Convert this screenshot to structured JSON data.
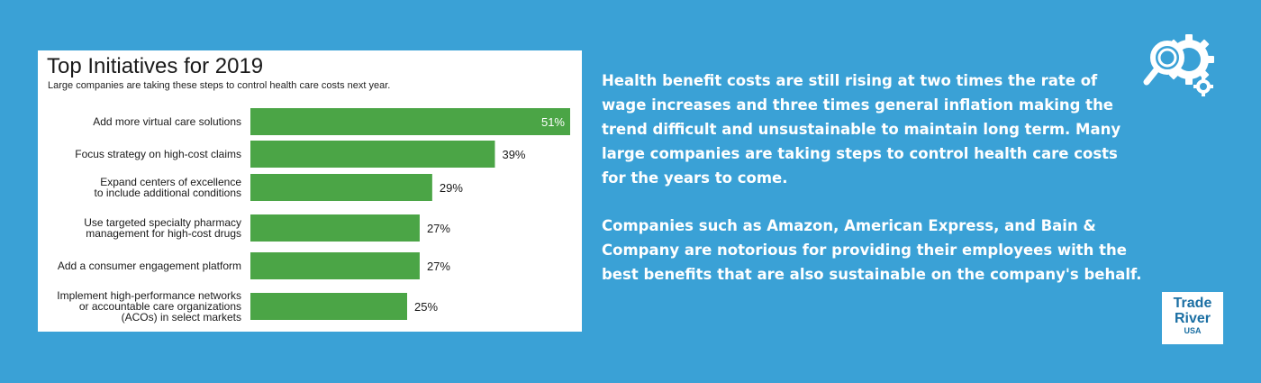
{
  "chart_data": {
    "type": "bar",
    "orientation": "horizontal",
    "title": "Top Initiatives for 2019",
    "subtitle": "Large companies are taking these steps to control health care costs next year.",
    "categories": [
      [
        "Add more virtual care solutions"
      ],
      [
        "Focus strategy on high-cost claims"
      ],
      [
        "Expand centers of excellence",
        "to include additional conditions"
      ],
      [
        "Use targeted specialty pharmacy",
        "management for high-cost drugs"
      ],
      [
        "Add a consumer engagement platform"
      ],
      [
        "Implement high-performance networks",
        "or accountable care organizations",
        "(ACOs) in select markets"
      ]
    ],
    "values": [
      51,
      39,
      29,
      27,
      27,
      25
    ],
    "value_labels": [
      "51%",
      "39%",
      "29%",
      "27%",
      "27%",
      "25%"
    ],
    "xlim": [
      0,
      51
    ],
    "bar_color": "#4ba546"
  },
  "body_text": {
    "paragraph_1": "Health benefit costs are still rising at two times the rate of wage increases and three times general inflation making the trend difficult and unsustainable to maintain long term. Many large companies are taking steps to control health care costs for the years to come.",
    "paragraph_2": "Companies such as Amazon, American Express, and Bain & Company are notorious for providing their employees with the best benefits that are also sustainable on the company's behalf."
  },
  "logo": {
    "line1": "Trade",
    "line2": "River",
    "line3": "USA"
  },
  "colors": {
    "background": "#3aa1d6",
    "logo_text": "#1b6fa3"
  }
}
